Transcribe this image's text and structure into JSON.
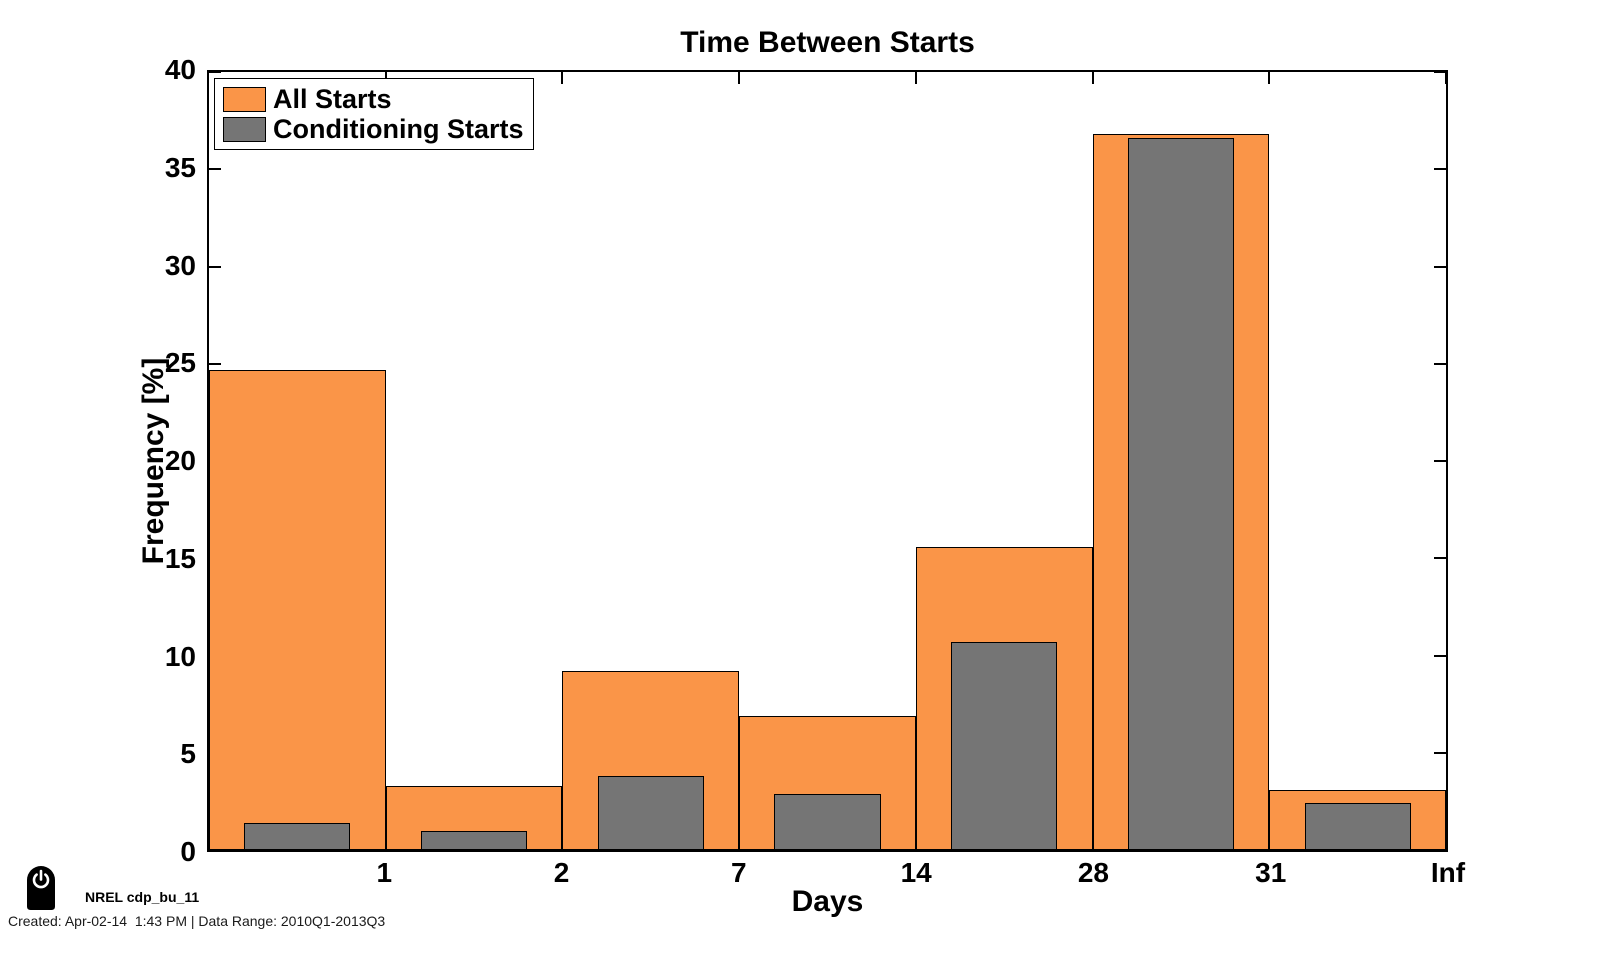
{
  "title": "Time Between Starts",
  "xlabel": "Days",
  "ylabel": "Frequency [%]",
  "chart_data": {
    "type": "bar",
    "title": "Time Between Starts",
    "xlabel": "Days",
    "ylabel": "Frequency [%]",
    "ylim": [
      0,
      40
    ],
    "y_ticks": [
      0,
      5,
      10,
      15,
      20,
      25,
      30,
      35,
      40
    ],
    "bin_edge_labels": [
      "1",
      "2",
      "7",
      "14",
      "28",
      "31",
      "Inf"
    ],
    "grid": false,
    "legend_position": "top-left",
    "bar_edge_color": "#000000",
    "series": [
      {
        "name": "All Starts",
        "color": "#FA9548",
        "values": [
          24.7,
          3.3,
          9.2,
          6.9,
          15.6,
          36.8,
          3.1
        ]
      },
      {
        "name": "Conditioning Starts",
        "color": "#757575",
        "values": [
          1.4,
          1.0,
          3.8,
          2.9,
          10.7,
          36.6,
          2.4
        ]
      }
    ]
  },
  "footer": {
    "brand": "NREL cdp_bu_11",
    "created": "Created: Apr-02-14  1:43 PM | Data Range: 2010Q1-2013Q3",
    "power_icon": "power-icon"
  }
}
